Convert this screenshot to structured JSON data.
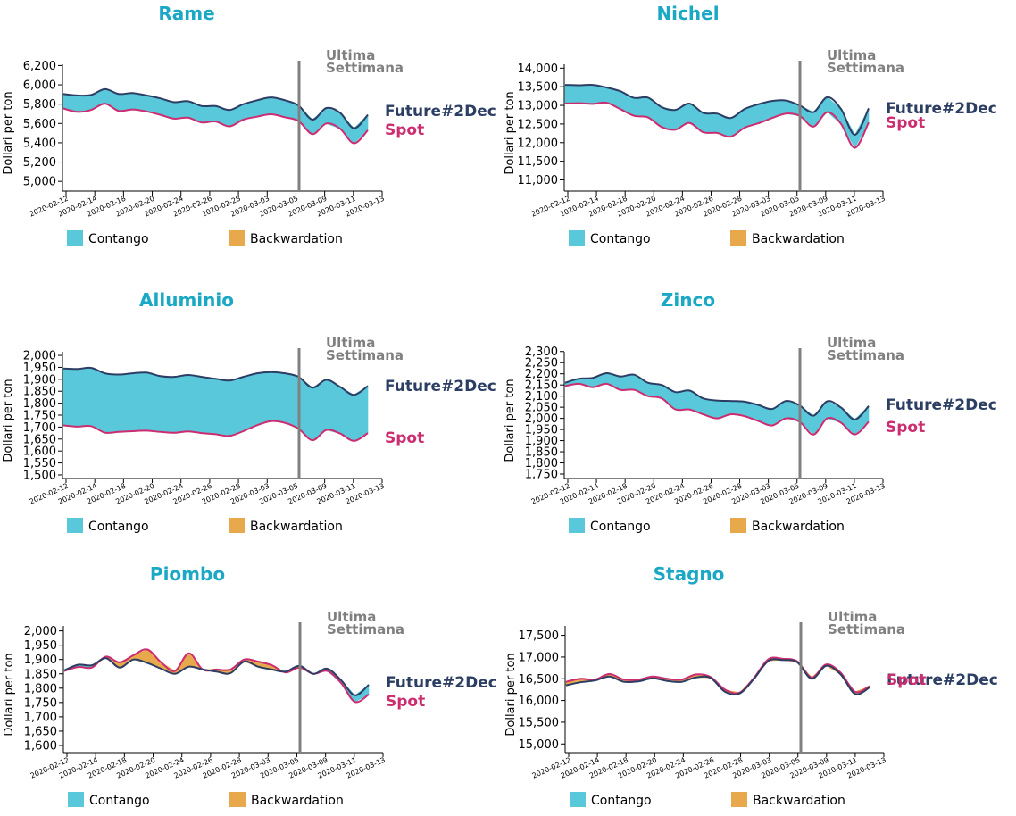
{
  "colors": {
    "title": "#1aa8c4",
    "future": "#2c3e63",
    "spot": "#cc2d71",
    "contango": "#5ac8db",
    "backwardation": "#e8a84c",
    "marker": "#808080",
    "axis": "#000000"
  },
  "legend": {
    "contango": "Contango",
    "backwardation": "Backwardation"
  },
  "chart_data": [
    {
      "type": "area",
      "title": "Rame",
      "xlabel": "",
      "ylabel": "Dollari per ton",
      "ylim": [
        4900,
        6250
      ],
      "yticks": [
        5000,
        5200,
        5400,
        5600,
        5800,
        6000,
        6200
      ],
      "ytick_labels": [
        "5,000",
        "5,200",
        "5,400",
        "5,600",
        "5,800",
        "6,000",
        "6,200"
      ],
      "xtick_labels": [
        "2020-02-12",
        "2020-02-14",
        "2020-02-18",
        "2020-02-20",
        "2020-02-24",
        "2020-02-26",
        "2020-02-28",
        "2020-03-03",
        "2020-03-05",
        "2020-03-09",
        "2020-03-11",
        "2020-03-13"
      ],
      "marker_label": [
        "Ultima",
        "Settimana"
      ],
      "series": [
        {
          "name": "Future#2Dec",
          "values": [
            5905,
            5890,
            5895,
            5955,
            5905,
            5915,
            5890,
            5860,
            5820,
            5830,
            5780,
            5780,
            5740,
            5800,
            5840,
            5870,
            5840,
            5785,
            5640,
            5760,
            5710,
            5550,
            5690
          ]
        },
        {
          "name": "Spot",
          "values": [
            5755,
            5720,
            5740,
            5805,
            5730,
            5745,
            5725,
            5690,
            5650,
            5660,
            5610,
            5620,
            5570,
            5640,
            5670,
            5695,
            5665,
            5625,
            5490,
            5600,
            5545,
            5395,
            5530
          ]
        }
      ]
    },
    {
      "type": "area",
      "title": "Nichel",
      "xlabel": "",
      "ylabel": "Dollari per ton",
      "ylim": [
        10700,
        14200
      ],
      "yticks": [
        11000,
        11500,
        12000,
        12500,
        13000,
        13500,
        14000
      ],
      "ytick_labels": [
        "11,000",
        "11,500",
        "12,000",
        "12,500",
        "13,000",
        "13,500",
        "14,000"
      ],
      "xtick_labels": [
        "2020-02-12",
        "2020-02-14",
        "2020-02-18",
        "2020-02-20",
        "2020-02-24",
        "2020-02-26",
        "2020-02-28",
        "2020-03-03",
        "2020-03-05",
        "2020-03-09",
        "2020-03-11",
        "2020-03-13"
      ],
      "marker_label": [
        "Ultima",
        "Settimana"
      ],
      "series": [
        {
          "name": "Future#2Dec",
          "values": [
            13550,
            13540,
            13550,
            13480,
            13380,
            13200,
            13210,
            12950,
            12880,
            13050,
            12800,
            12780,
            12660,
            12900,
            13030,
            13120,
            13130,
            13000,
            12820,
            13220,
            12900,
            12210,
            12920
          ]
        },
        {
          "name": "Spot",
          "values": [
            13050,
            13060,
            13040,
            13070,
            12900,
            12720,
            12680,
            12420,
            12350,
            12530,
            12280,
            12260,
            12160,
            12400,
            12520,
            12660,
            12780,
            12720,
            12430,
            12820,
            12500,
            11860,
            12540
          ]
        }
      ]
    },
    {
      "type": "area",
      "title": "Alluminio",
      "xlabel": "",
      "ylabel": "Dollari per ton",
      "ylim": [
        1485,
        2030
      ],
      "yticks": [
        1500,
        1550,
        1600,
        1650,
        1700,
        1750,
        1800,
        1850,
        1900,
        1950,
        2000
      ],
      "ytick_labels": [
        "1,500",
        "1,550",
        "1,600",
        "1,650",
        "1,700",
        "1,750",
        "1,800",
        "1,850",
        "1,900",
        "1,950",
        "2,000"
      ],
      "xtick_labels": [
        "2020-02-12",
        "2020-02-14",
        "2020-02-18",
        "2020-02-20",
        "2020-02-24",
        "2020-02-26",
        "2020-02-28",
        "2020-03-03",
        "2020-03-05",
        "2020-03-09",
        "2020-03-11",
        "2020-03-13"
      ],
      "marker_label": [
        "Ultima",
        "Settimana"
      ],
      "series": [
        {
          "name": "Future#2Dec",
          "values": [
            1945,
            1943,
            1948,
            1925,
            1920,
            1925,
            1928,
            1913,
            1910,
            1918,
            1910,
            1902,
            1895,
            1910,
            1925,
            1930,
            1925,
            1910,
            1865,
            1898,
            1868,
            1835,
            1872
          ]
        },
        {
          "name": "Spot",
          "values": [
            1707,
            1702,
            1704,
            1677,
            1680,
            1683,
            1685,
            1680,
            1676,
            1682,
            1675,
            1670,
            1663,
            1683,
            1708,
            1725,
            1718,
            1693,
            1645,
            1688,
            1673,
            1642,
            1675
          ]
        }
      ]
    },
    {
      "type": "area",
      "title": "Zinco",
      "xlabel": "",
      "ylabel": "Dollari per ton",
      "ylim": [
        1730,
        2315
      ],
      "yticks": [
        1750,
        1800,
        1850,
        1900,
        1950,
        2000,
        2050,
        2100,
        2150,
        2200,
        2250,
        2300
      ],
      "ytick_labels": [
        "1,750",
        "1,800",
        "1,850",
        "1,900",
        "1,950",
        "2,000",
        "2,050",
        "2,100",
        "2,150",
        "2,200",
        "2,250",
        "2,300"
      ],
      "xtick_labels": [
        "2020-02-12",
        "2020-02-14",
        "2020-02-18",
        "2020-02-20",
        "2020-02-24",
        "2020-02-26",
        "2020-02-28",
        "2020-03-03",
        "2020-03-05",
        "2020-03-09",
        "2020-03-11",
        "2020-03-13"
      ],
      "marker_label": [
        "Ultima",
        "Settimana"
      ],
      "series": [
        {
          "name": "Future#2Dec",
          "values": [
            2160,
            2178,
            2182,
            2203,
            2188,
            2196,
            2160,
            2150,
            2118,
            2125,
            2090,
            2080,
            2078,
            2075,
            2060,
            2042,
            2078,
            2058,
            2012,
            2077,
            2048,
            1995,
            2055
          ]
        },
        {
          "name": "Spot",
          "values": [
            2145,
            2155,
            2140,
            2155,
            2128,
            2128,
            2100,
            2090,
            2040,
            2040,
            2018,
            2000,
            2018,
            2010,
            1988,
            1968,
            2000,
            1985,
            1927,
            2000,
            1980,
            1928,
            1985
          ]
        }
      ]
    },
    {
      "type": "area",
      "title": "Piombo",
      "xlabel": "",
      "ylabel": "Dollari per ton",
      "ylim": [
        1575,
        2030
      ],
      "yticks": [
        1600,
        1650,
        1700,
        1750,
        1800,
        1850,
        1900,
        1950,
        2000
      ],
      "ytick_labels": [
        "1,600",
        "1,650",
        "1,700",
        "1,750",
        "1,800",
        "1,850",
        "1,900",
        "1,950",
        "2,000"
      ],
      "xtick_labels": [
        "2020-02-12",
        "2020-02-14",
        "2020-02-18",
        "2020-02-20",
        "2020-02-24",
        "2020-02-26",
        "2020-02-28",
        "2020-03-03",
        "2020-03-05",
        "2020-03-09",
        "2020-03-11",
        "2020-03-13"
      ],
      "marker_label": [
        "Ultima",
        "Settimana"
      ],
      "series": [
        {
          "name": "Future#2Dec",
          "values": [
            1862,
            1882,
            1880,
            1905,
            1872,
            1900,
            1888,
            1868,
            1850,
            1875,
            1865,
            1858,
            1852,
            1893,
            1875,
            1865,
            1858,
            1878,
            1850,
            1868,
            1828,
            1775,
            1812
          ]
        },
        {
          "name": "Spot",
          "values": [
            1860,
            1874,
            1872,
            1910,
            1890,
            1915,
            1935,
            1890,
            1860,
            1922,
            1865,
            1865,
            1865,
            1900,
            1893,
            1880,
            1855,
            1872,
            1850,
            1860,
            1818,
            1752,
            1778
          ]
        }
      ]
    },
    {
      "type": "area",
      "title": "Stagno",
      "xlabel": "",
      "ylabel": "Dollari per ton",
      "ylim": [
        14800,
        17800
      ],
      "yticks": [
        15000,
        15500,
        16000,
        16500,
        17000,
        17500
      ],
      "ytick_labels": [
        "15,000",
        "15,500",
        "16,000",
        "16,500",
        "17,000",
        "17,500"
      ],
      "xtick_labels": [
        "2020-02-12",
        "2020-02-14",
        "2020-02-18",
        "2020-02-20",
        "2020-02-24",
        "2020-02-26",
        "2020-02-28",
        "2020-03-03",
        "2020-03-05",
        "2020-03-09",
        "2020-03-11",
        "2020-03-13"
      ],
      "marker_label": [
        "Ultima",
        "Settimana"
      ],
      "series": [
        {
          "name": "Future#2Dec",
          "values": [
            16350,
            16420,
            16460,
            16550,
            16430,
            16440,
            16510,
            16450,
            16430,
            16530,
            16520,
            16200,
            16160,
            16500,
            16910,
            16930,
            16880,
            16500,
            16800,
            16600,
            16150,
            16300
          ]
        },
        {
          "name": "Spot",
          "values": [
            16430,
            16500,
            16480,
            16610,
            16480,
            16480,
            16550,
            16500,
            16480,
            16600,
            16540,
            16250,
            16180,
            16520,
            16950,
            16960,
            16900,
            16530,
            16830,
            16640,
            16200,
            16330
          ]
        }
      ]
    }
  ]
}
